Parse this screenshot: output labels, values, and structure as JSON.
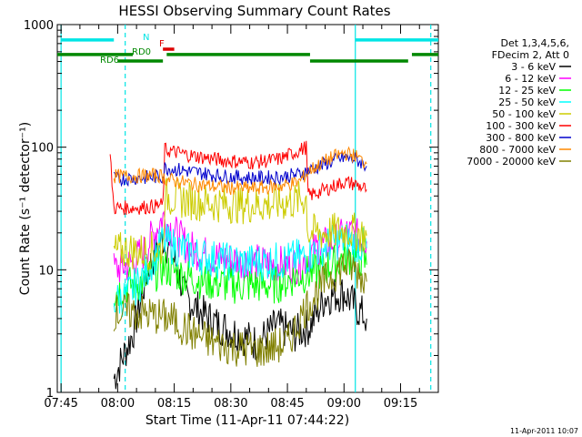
{
  "chart_data": {
    "type": "line",
    "title": "HESSI Observing Summary Count Rates",
    "xlabel": "Start Time (11-Apr-11 07:44:22)",
    "ylabel": "Count Rate (s⁻¹ detector⁻¹)",
    "yscale": "log",
    "ylim": [
      1,
      1000
    ],
    "xlim": [
      "07:44",
      "09:25"
    ],
    "xticks": [
      "07:45",
      "08:00",
      "08:15",
      "08:30",
      "08:45",
      "09:00",
      "09:15"
    ],
    "yticks": [
      "1",
      "10",
      "100",
      "1000"
    ],
    "footer": "11-Apr-2011 10:07",
    "legend_header": [
      "Det 1,3,4,5,6,",
      "FDecim 2, Att 0"
    ],
    "series": [
      {
        "name": "3 - 6 keV",
        "color": "#000000",
        "points": [
          [
            "07:59",
            1.3
          ],
          [
            "08:04",
            3.0
          ],
          [
            "08:08",
            10
          ],
          [
            "08:12",
            18
          ],
          [
            "08:15",
            12
          ],
          [
            "08:18",
            6
          ],
          [
            "08:22",
            4.5
          ],
          [
            "08:27",
            3.5
          ],
          [
            "08:32",
            3
          ],
          [
            "08:37",
            2.5
          ],
          [
            "08:42",
            3.5
          ],
          [
            "08:47",
            3
          ],
          [
            "08:51",
            3.5
          ],
          [
            "08:55",
            6
          ],
          [
            "09:00",
            6.5
          ],
          [
            "09:03",
            5
          ],
          [
            "09:06",
            4
          ]
        ]
      },
      {
        "name": "6 - 12 keV",
        "color": "#ff00ff",
        "points": [
          [
            "07:59",
            10
          ],
          [
            "08:03",
            11
          ],
          [
            "08:07",
            14
          ],
          [
            "08:12",
            27
          ],
          [
            "08:15",
            20
          ],
          [
            "08:19",
            15
          ],
          [
            "08:24",
            13
          ],
          [
            "08:30",
            12
          ],
          [
            "08:36",
            11.5
          ],
          [
            "08:42",
            11
          ],
          [
            "08:48",
            11
          ],
          [
            "08:53",
            15
          ],
          [
            "08:58",
            17
          ],
          [
            "09:01",
            20
          ],
          [
            "09:04",
            18
          ],
          [
            "09:06",
            17
          ]
        ]
      },
      {
        "name": "12 - 25 keV",
        "color": "#00ff00",
        "points": [
          [
            "07:59",
            6.5
          ],
          [
            "08:03",
            7.5
          ],
          [
            "08:07",
            8
          ],
          [
            "08:12",
            10.5
          ],
          [
            "08:17",
            9
          ],
          [
            "08:24",
            8
          ],
          [
            "08:30",
            7.5
          ],
          [
            "08:36",
            7.5
          ],
          [
            "08:42",
            7.5
          ],
          [
            "08:48",
            9
          ],
          [
            "08:53",
            9.5
          ],
          [
            "08:58",
            11.5
          ],
          [
            "09:01",
            13
          ],
          [
            "09:04",
            12.5
          ],
          [
            "09:06",
            11
          ]
        ]
      },
      {
        "name": "25 - 50 keV",
        "color": "#00ffff",
        "points": [
          [
            "07:59",
            5.5
          ],
          [
            "08:02",
            6
          ],
          [
            "08:06",
            8
          ],
          [
            "08:12",
            17
          ],
          [
            "08:16",
            15
          ],
          [
            "08:22",
            13
          ],
          [
            "08:30",
            11.5
          ],
          [
            "08:38",
            11.5
          ],
          [
            "08:45",
            12
          ],
          [
            "08:50",
            13
          ],
          [
            "08:54",
            15
          ],
          [
            "08:58",
            17
          ],
          [
            "09:01",
            17.5
          ],
          [
            "09:04",
            16
          ],
          [
            "09:06",
            15
          ]
        ]
      },
      {
        "name": "50 - 100 keV",
        "color": "#cccc00",
        "points": [
          [
            "07:59",
            14
          ],
          [
            "08:03",
            14.5
          ],
          [
            "08:07",
            14
          ],
          [
            "08:12",
            15
          ],
          [
            "08:12.5",
            40
          ],
          [
            "08:18",
            37
          ],
          [
            "08:25",
            35
          ],
          [
            "08:32",
            34
          ],
          [
            "08:40",
            34
          ],
          [
            "08:46",
            36
          ],
          [
            "08:50",
            38
          ],
          [
            "08:50.5",
            20
          ],
          [
            "08:56",
            20
          ],
          [
            "09:01",
            21
          ],
          [
            "09:04",
            20
          ],
          [
            "09:06",
            19
          ]
        ]
      },
      {
        "name": "100 - 300 keV",
        "color": "#ff0000",
        "points": [
          [
            "07:58",
            85
          ],
          [
            "07:59",
            32
          ],
          [
            "08:04",
            32
          ],
          [
            "08:10",
            33
          ],
          [
            "08:12",
            34
          ],
          [
            "08:12.5",
            95
          ],
          [
            "08:20",
            85
          ],
          [
            "08:28",
            78
          ],
          [
            "08:36",
            75
          ],
          [
            "08:43",
            80
          ],
          [
            "08:50",
            100
          ],
          [
            "08:50.5",
            40
          ],
          [
            "08:55",
            45
          ],
          [
            "09:00",
            52
          ],
          [
            "09:03",
            50
          ],
          [
            "09:06",
            45
          ]
        ]
      },
      {
        "name": "300 - 800 keV",
        "color": "#0000cc",
        "points": [
          [
            "07:59",
            55
          ],
          [
            "08:04",
            56
          ],
          [
            "08:10",
            57
          ],
          [
            "08:12",
            58
          ],
          [
            "08:12.5",
            68
          ],
          [
            "08:20",
            63
          ],
          [
            "08:28",
            58
          ],
          [
            "08:36",
            56
          ],
          [
            "08:43",
            57
          ],
          [
            "08:48",
            60
          ],
          [
            "08:51",
            65
          ],
          [
            "08:56",
            75
          ],
          [
            "09:00",
            82
          ],
          [
            "09:03",
            80
          ],
          [
            "09:06",
            70
          ]
        ]
      },
      {
        "name": "800 - 7000 keV",
        "color": "#ff8800",
        "points": [
          [
            "07:59",
            58
          ],
          [
            "08:04",
            58
          ],
          [
            "08:10",
            59
          ],
          [
            "08:12",
            58
          ],
          [
            "08:12.5",
            55
          ],
          [
            "08:20",
            50
          ],
          [
            "08:28",
            47
          ],
          [
            "08:36",
            46
          ],
          [
            "08:43",
            48
          ],
          [
            "08:48",
            52
          ],
          [
            "08:51",
            65
          ],
          [
            "08:56",
            80
          ],
          [
            "09:00",
            90
          ],
          [
            "09:03",
            85
          ],
          [
            "09:06",
            73
          ]
        ]
      },
      {
        "name": "7000 - 20000 keV",
        "color": "#808000",
        "points": [
          [
            "07:59",
            4.5
          ],
          [
            "08:04",
            4.5
          ],
          [
            "08:10",
            4.2
          ],
          [
            "08:14",
            4
          ],
          [
            "08:20",
            3
          ],
          [
            "08:26",
            2.5
          ],
          [
            "08:32",
            2.3
          ],
          [
            "08:38",
            2.2
          ],
          [
            "08:45",
            2.5
          ],
          [
            "08:50",
            5
          ],
          [
            "08:55",
            8
          ],
          [
            "09:00",
            11
          ],
          [
            "09:03",
            10
          ],
          [
            "09:06",
            8
          ]
        ]
      }
    ],
    "state_bars": [
      {
        "label": "N",
        "color": "#00e5e5",
        "y": 750,
        "segments": [
          [
            "07:45",
            "07:59"
          ],
          [
            "09:03",
            "09:25"
          ]
        ]
      },
      {
        "label": "F",
        "color": "#dd0000",
        "y": 630,
        "segments": [
          [
            "08:12",
            "08:15"
          ]
        ]
      },
      {
        "label": "RD0",
        "color": "#008800",
        "y": 570,
        "segments": [
          [
            "07:44",
            "08:04"
          ],
          [
            "08:13",
            "08:51"
          ],
          [
            "09:18",
            "09:25"
          ]
        ]
      },
      {
        "label": "RD6",
        "color": "#008800",
        "y": 505,
        "segments": [
          [
            "08:00",
            "08:12"
          ],
          [
            "08:51",
            "09:17"
          ]
        ]
      }
    ],
    "vlines": [
      {
        "x": "07:45",
        "color": "#00e5e5",
        "dash": false
      },
      {
        "x": "08:02",
        "color": "#00e5e5",
        "dash": true
      },
      {
        "x": "09:03",
        "color": "#00e5e5",
        "dash": false
      },
      {
        "x": "09:23",
        "color": "#00e5e5",
        "dash": true
      }
    ]
  }
}
